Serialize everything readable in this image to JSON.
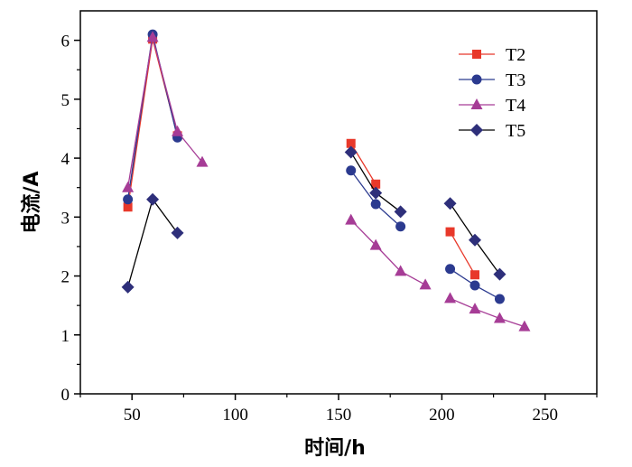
{
  "chart_data": {
    "type": "line",
    "title": "",
    "xlabel": "时间/h",
    "ylabel": "电流/A",
    "xlim": [
      25,
      275
    ],
    "ylim": [
      0,
      6.5
    ],
    "xticks": [
      50,
      100,
      150,
      200,
      250
    ],
    "yticks": [
      0,
      1,
      2,
      3,
      4,
      5,
      6
    ],
    "legend_position": "top-right",
    "series": [
      {
        "name": "T2",
        "color": "#e8382a",
        "marker": "square",
        "segments": [
          [
            [
              48,
              3.17
            ],
            [
              60,
              6.02
            ],
            [
              72,
              4.38
            ]
          ],
          [
            [
              156,
              4.25
            ],
            [
              168,
              3.56
            ]
          ],
          [
            [
              204,
              2.75
            ],
            [
              216,
              2.02
            ]
          ]
        ]
      },
      {
        "name": "T3",
        "color": "#2b3a8f",
        "marker": "circle",
        "segments": [
          [
            [
              48,
              3.3
            ],
            [
              60,
              6.1
            ],
            [
              72,
              4.35
            ]
          ],
          [
            [
              156,
              3.79
            ],
            [
              168,
              3.22
            ],
            [
              180,
              2.84
            ]
          ],
          [
            [
              204,
              2.12
            ],
            [
              216,
              1.84
            ],
            [
              228,
              1.61
            ]
          ]
        ]
      },
      {
        "name": "T4",
        "color": "#a63c96",
        "marker": "triangle",
        "segments": [
          [
            [
              48,
              3.5
            ],
            [
              60,
              6.05
            ],
            [
              72,
              4.45
            ],
            [
              84,
              3.93
            ]
          ],
          [
            [
              156,
              2.95
            ],
            [
              168,
              2.52
            ],
            [
              180,
              2.08
            ],
            [
              192,
              1.85
            ]
          ],
          [
            [
              204,
              1.62
            ],
            [
              216,
              1.44
            ],
            [
              228,
              1.28
            ],
            [
              240,
              1.14
            ]
          ]
        ]
      },
      {
        "name": "T5",
        "color": "#2e2f7a",
        "marker": "diamond",
        "segments": [
          [
            [
              48,
              1.81
            ],
            [
              60,
              3.3
            ],
            [
              72,
              2.73
            ]
          ],
          [
            [
              156,
              4.1
            ],
            [
              168,
              3.41
            ],
            [
              180,
              3.09
            ]
          ],
          [
            [
              204,
              3.23
            ],
            [
              216,
              2.61
            ],
            [
              228,
              2.03
            ]
          ]
        ]
      }
    ]
  }
}
